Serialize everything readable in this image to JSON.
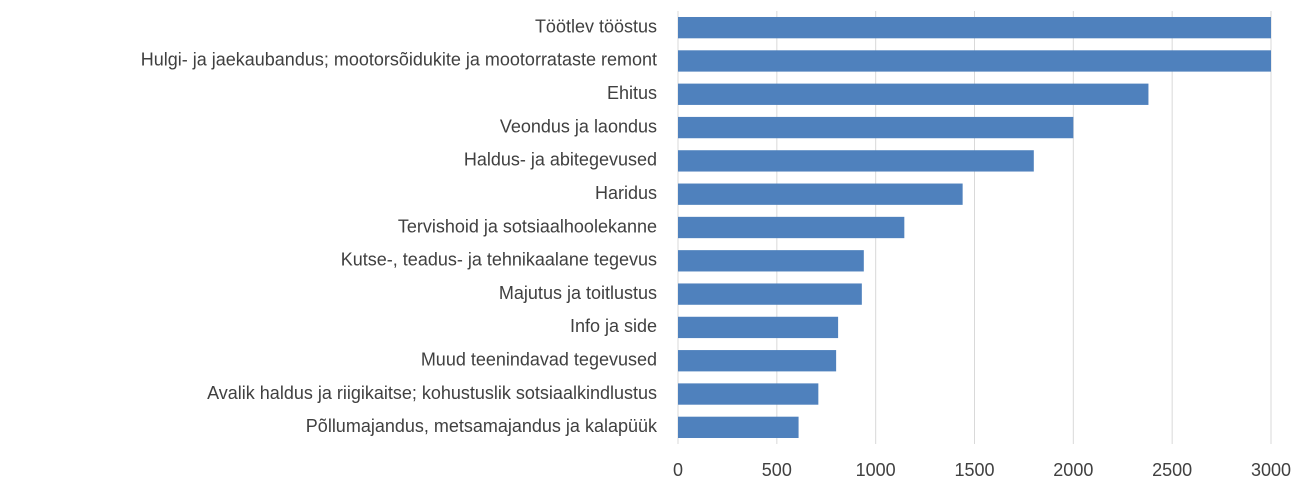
{
  "chart_data": {
    "type": "barh",
    "categories": [
      "Töötlev tööstus",
      "Hulgi- ja jaekaubandus; mootorsõidukite ja mootorrataste remont",
      "Ehitus",
      "Veondus ja laondus",
      "Haldus- ja abitegevused",
      "Haridus",
      "Tervishoid ja sotsiaalhoolekanne",
      "Kutse-, teadus- ja tehnikaalane tegevus",
      "Majutus ja toitlustus",
      "Info ja side",
      "Muud teenindavad tegevused",
      "Avalik haldus ja riigikaitse; kohustuslik sotsiaalkindlustus",
      "Põllumajandus, metsamajandus ja kalapüük"
    ],
    "values": [
      3000,
      3000,
      2380,
      2000,
      1800,
      1440,
      1145,
      940,
      930,
      810,
      800,
      710,
      610
    ],
    "color": "#4f81bd",
    "xlim": [
      0,
      3000
    ],
    "xticks": [
      0,
      500,
      1000,
      1500,
      2000,
      2500,
      3000
    ],
    "grid": true
  }
}
